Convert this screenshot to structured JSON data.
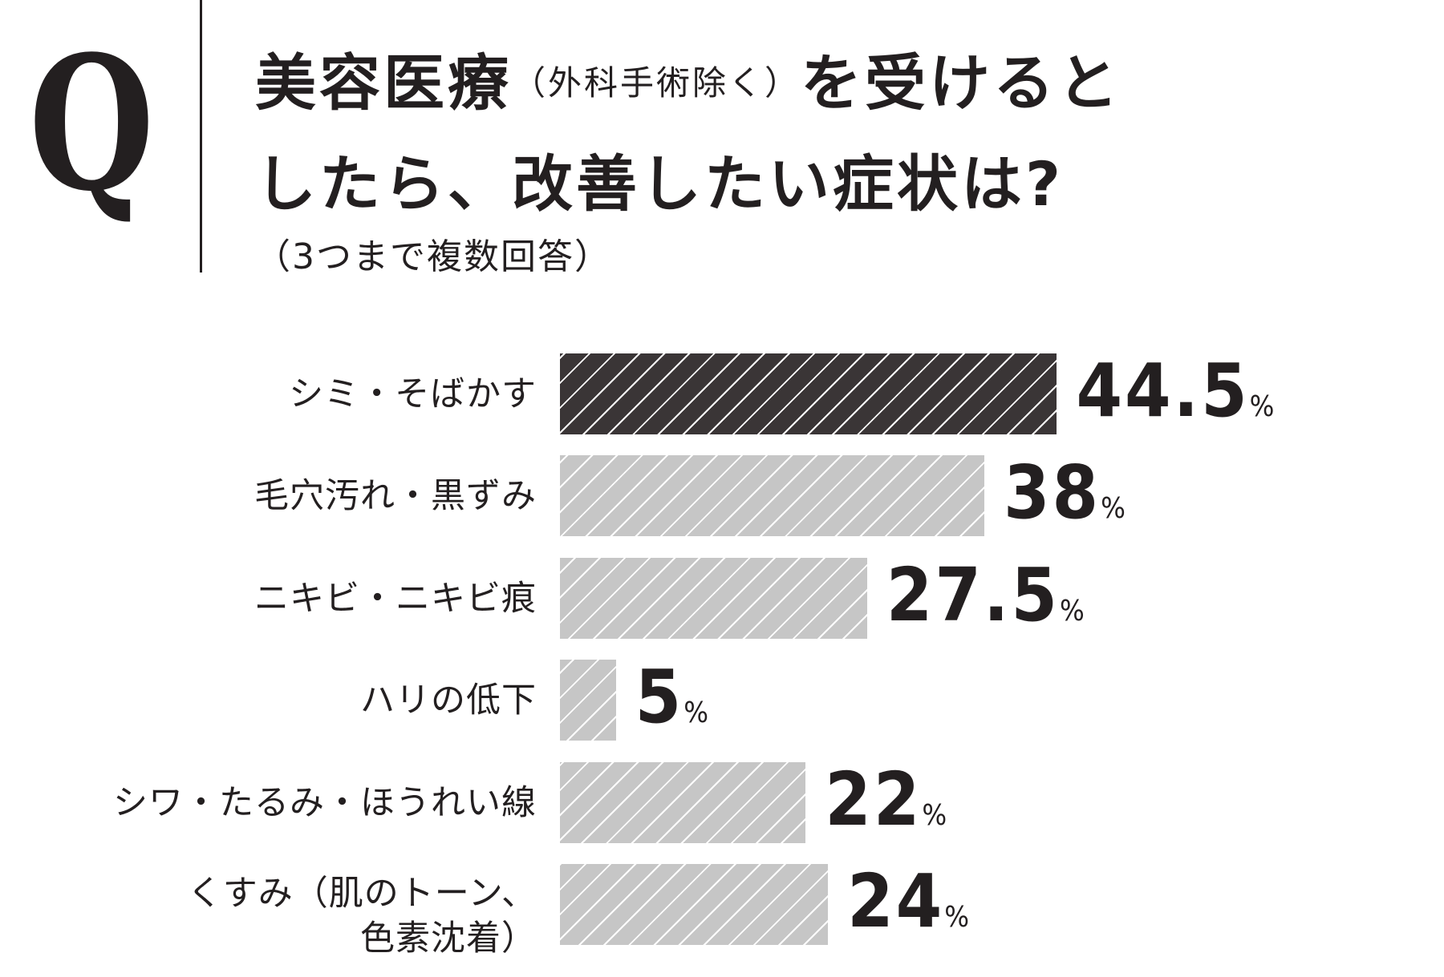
{
  "header": {
    "logo_letter": "Q",
    "title_line1_a": "美容医療",
    "title_line1_paren": "（外科手術除く）",
    "title_line1_b": "を受けると",
    "title_line2": "したら、改善したい症状は?",
    "subtitle": "（3つまで複数回答）"
  },
  "chart_data": {
    "type": "bar",
    "orientation": "horizontal",
    "title": "美容医療（外科手術除く）を受けるとしたら、改善したい症状は?（3つまで複数回答）",
    "unit": "%",
    "categories": [
      "シミ・そばかす",
      "毛穴汚れ・黒ずみ",
      "ニキビ・ニキビ痕",
      "ハリの低下",
      "シワ・たるみ・ほうれい線",
      "くすみ（肌のトーン、色素沈着）"
    ],
    "category_lines": [
      [
        "シミ・そばかす"
      ],
      [
        "毛穴汚れ・黒ずみ"
      ],
      [
        "ニキビ・ニキビ痕"
      ],
      [
        "ハリの低下"
      ],
      [
        "シワ・たるみ・ほうれい線"
      ],
      [
        "くすみ（肌のトーン、",
        "色素沈着）"
      ]
    ],
    "values": [
      44.5,
      38,
      27.5,
      5,
      22,
      24
    ],
    "value_labels": [
      "44.5",
      "38",
      "27.5",
      "5",
      "22",
      "24"
    ],
    "highlight_index": 0,
    "colors": {
      "highlight": "#3a3536",
      "default": "#c6c6c6",
      "hatch": "#ffffff"
    }
  }
}
